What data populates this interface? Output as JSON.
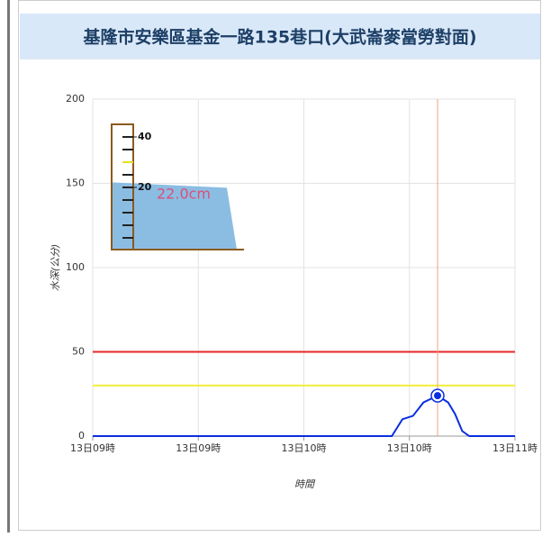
{
  "chart_data": {
    "type": "line",
    "title": "基隆市安樂區基金一路135巷口(大武崙麥當勞對面)",
    "x_label": "時間",
    "y_label": "水深(公分)",
    "x": [
      0,
      85,
      88,
      91,
      94,
      98,
      101,
      103,
      105,
      107,
      120
    ],
    "series": [
      {
        "color": "#0a2ee0",
        "values": [
          0,
          0,
          10,
          12,
          20,
          24,
          20,
          13,
          3,
          0,
          0
        ]
      }
    ],
    "highlight_index": 5,
    "xlim": [
      0,
      120
    ],
    "xticks": [
      {
        "value": 0,
        "label": "13日09時"
      },
      {
        "value": 30,
        "label": "13日09時"
      },
      {
        "value": 60,
        "label": "13日10時"
      },
      {
        "value": 90,
        "label": "13日10時"
      },
      {
        "value": 120,
        "label": "13日11時"
      }
    ],
    "ylim": [
      0,
      200
    ],
    "yticks": [
      0,
      50,
      100,
      150,
      200
    ],
    "grid": true,
    "thresholds": [
      {
        "value": 50,
        "color": "#e8252a"
      },
      {
        "value": 30,
        "color": "#f5ee3a"
      }
    ],
    "gauge": {
      "ticks": [
        40,
        20
      ],
      "reading": 22.0,
      "reading_label": "22.0cm"
    }
  }
}
